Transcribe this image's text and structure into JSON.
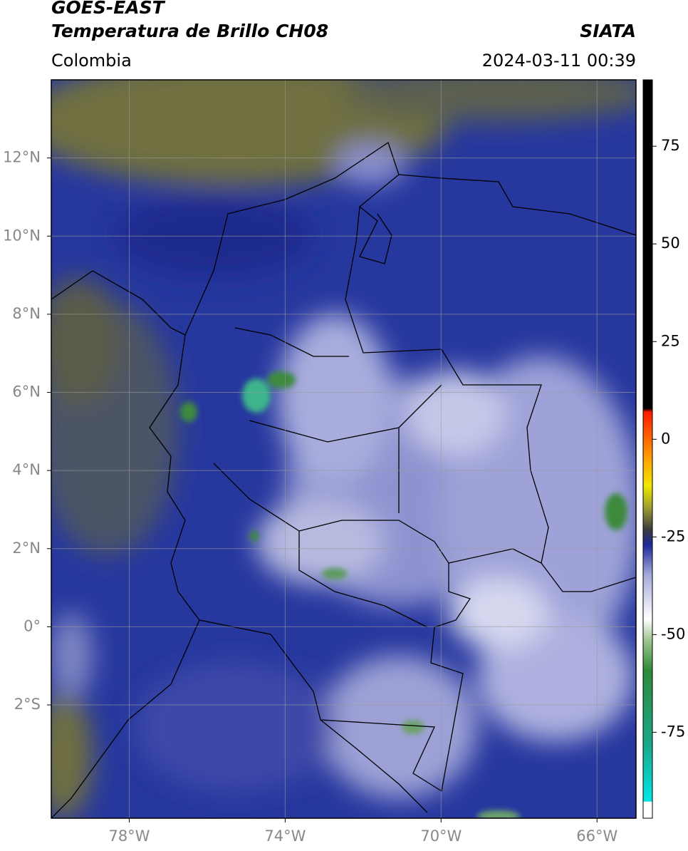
{
  "header": {
    "title": "GOES-EAST",
    "subtitle": "Temperatura de Brillo CH08",
    "region": "Colombia",
    "source": "SIATA",
    "timestamp": "2024-03-11 00:39"
  },
  "map": {
    "lon_range": [
      -80,
      -65
    ],
    "lat_range": [
      -4.9,
      14
    ],
    "grid": true,
    "lon_ticks": [
      {
        "value": -78,
        "label": "78°W"
      },
      {
        "value": -74,
        "label": "74°W"
      },
      {
        "value": -70,
        "label": "70°W"
      },
      {
        "value": -66,
        "label": "66°W"
      }
    ],
    "lat_ticks": [
      {
        "value": 12,
        "label": "12°N"
      },
      {
        "value": 10,
        "label": "10°N"
      },
      {
        "value": 8,
        "label": "8°N"
      },
      {
        "value": 6,
        "label": "6°N"
      },
      {
        "value": 4,
        "label": "4°N"
      },
      {
        "value": 2,
        "label": "2°N"
      },
      {
        "value": 0,
        "label": "0°"
      },
      {
        "value": -2,
        "label": "2°S"
      }
    ]
  },
  "colorbar": {
    "range": [
      -97,
      92
    ],
    "ticks": [
      75,
      50,
      25,
      0,
      -25,
      -50,
      -75
    ]
  }
}
